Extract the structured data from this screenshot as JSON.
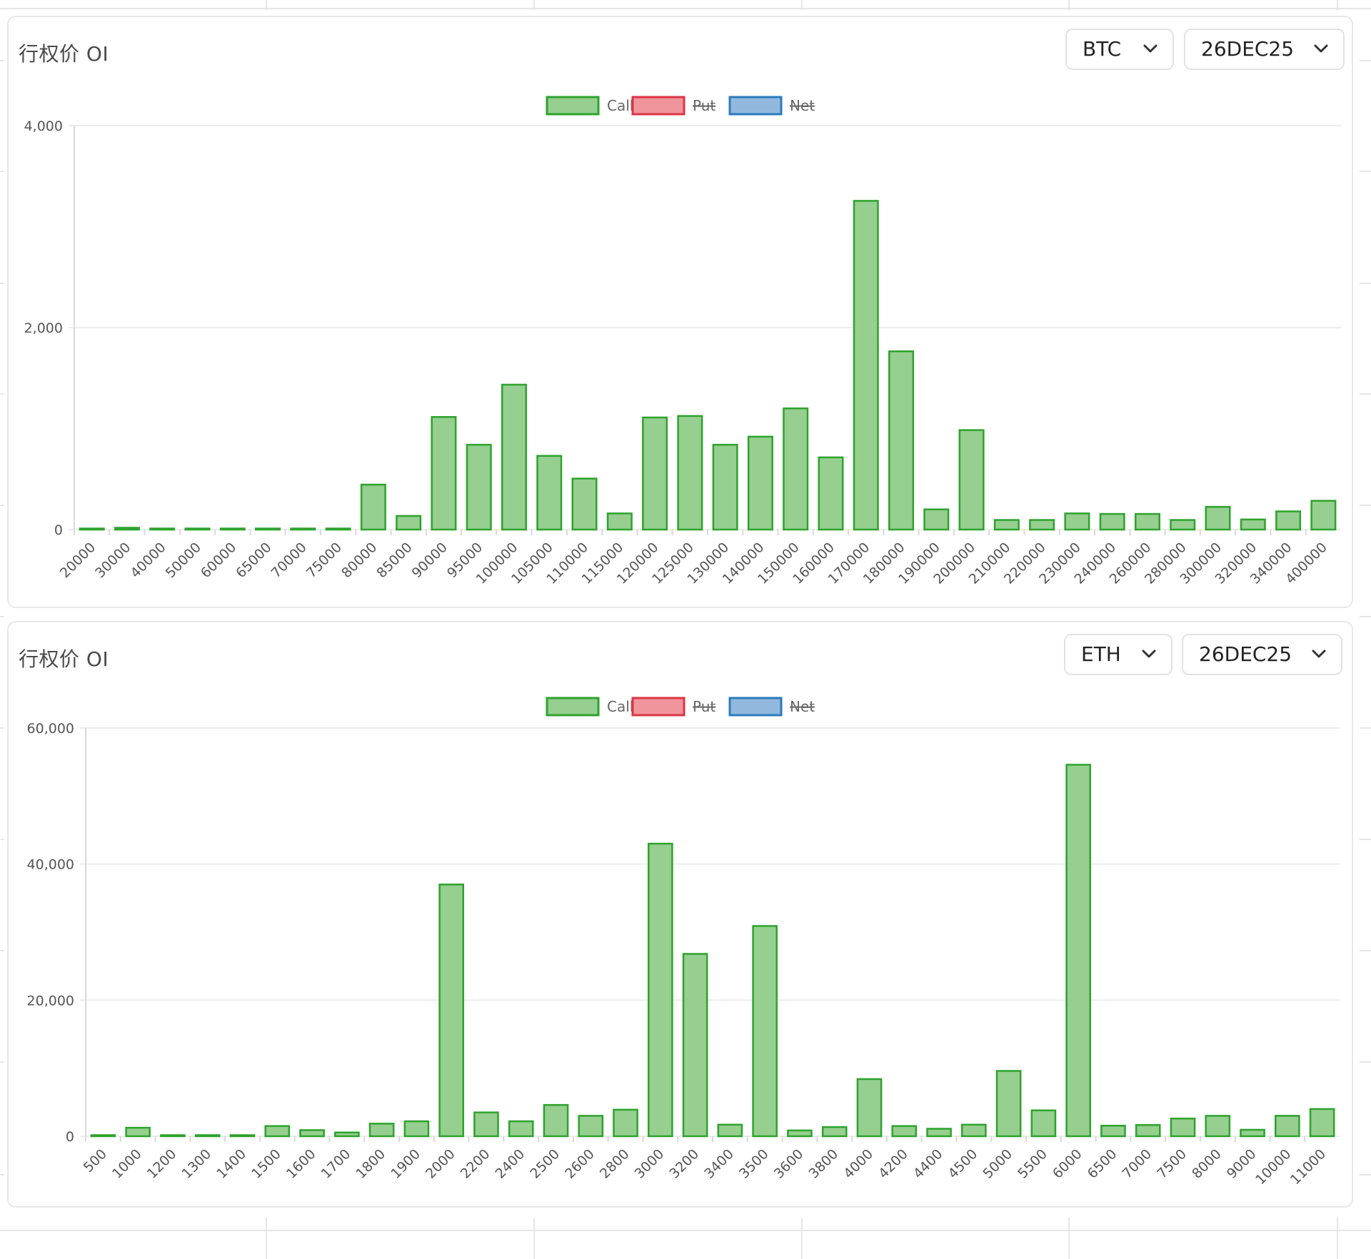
{
  "colors": {
    "call_fill": "#96cf8f",
    "call_stroke": "#2ea32e",
    "put_fill": "#f0959b",
    "put_stroke": "#dc3545",
    "net_fill": "#92b9dd",
    "net_stroke": "#2b7bbf",
    "grid": "#ececec",
    "axis": "#d9d9d9"
  },
  "panels": [
    {
      "title": "行权价 OI",
      "asset_select": {
        "value": "BTC"
      },
      "expiry_select": {
        "value": "26DEC25"
      },
      "legend": [
        {
          "label": "Call",
          "hidden": false
        },
        {
          "label": "Put",
          "hidden": true
        },
        {
          "label": "Net",
          "hidden": true
        }
      ]
    },
    {
      "title": "行权价 OI",
      "asset_select": {
        "value": "ETH"
      },
      "expiry_select": {
        "value": "26DEC25"
      },
      "legend": [
        {
          "label": "Call",
          "hidden": false
        },
        {
          "label": "Put",
          "hidden": true
        },
        {
          "label": "Net",
          "hidden": true
        }
      ]
    }
  ],
  "chart_data": [
    {
      "type": "bar",
      "title": "行权价 OI",
      "asset": "BTC",
      "expiry": "26DEC25",
      "categories": [
        "20000",
        "30000",
        "40000",
        "50000",
        "60000",
        "65000",
        "70000",
        "75000",
        "80000",
        "85000",
        "90000",
        "95000",
        "100000",
        "105000",
        "110000",
        "115000",
        "120000",
        "125000",
        "130000",
        "140000",
        "150000",
        "160000",
        "170000",
        "180000",
        "190000",
        "200000",
        "210000",
        "220000",
        "230000",
        "240000",
        "260000",
        "280000",
        "300000",
        "320000",
        "340000",
        "400000"
      ],
      "series": [
        {
          "name": "Call",
          "visible": true,
          "values": [
            8,
            18,
            4,
            4,
            2,
            4,
            8,
            8,
            445,
            135,
            1115,
            840,
            1435,
            730,
            505,
            160,
            1110,
            1125,
            840,
            920,
            1200,
            715,
            3255,
            1765,
            200,
            985,
            95,
            95,
            160,
            155,
            155,
            95,
            225,
            100,
            180,
            285
          ]
        }
      ],
      "hidden_series": [
        "Put",
        "Net"
      ],
      "ylim": [
        0,
        4000
      ],
      "yticks": [
        0,
        2000,
        4000
      ],
      "ytick_labels": [
        "0",
        "2,000",
        "4,000"
      ],
      "xlabel": "",
      "ylabel": "",
      "grid": true,
      "legend_position": "top-center"
    },
    {
      "type": "bar",
      "title": "行权价 OI",
      "asset": "ETH",
      "expiry": "26DEC25",
      "categories": [
        "500",
        "1000",
        "1200",
        "1300",
        "1400",
        "1500",
        "1600",
        "1700",
        "1800",
        "1900",
        "2000",
        "2200",
        "2400",
        "2500",
        "2600",
        "2800",
        "3000",
        "3200",
        "3400",
        "3500",
        "3600",
        "3800",
        "4000",
        "4200",
        "4400",
        "4500",
        "5000",
        "5500",
        "6000",
        "6500",
        "7000",
        "7500",
        "8000",
        "9000",
        "10000",
        "11000"
      ],
      "series": [
        {
          "name": "Call",
          "visible": true,
          "values": [
            150,
            1250,
            20,
            60,
            20,
            1500,
            900,
            550,
            1850,
            2200,
            37000,
            3500,
            2200,
            4600,
            3000,
            3900,
            43000,
            26800,
            1700,
            30900,
            850,
            1350,
            8400,
            1500,
            1100,
            1700,
            9600,
            3800,
            54600,
            1550,
            1650,
            2600,
            3000,
            950,
            3000,
            4000
          ]
        }
      ],
      "hidden_series": [
        "Put",
        "Net"
      ],
      "ylim": [
        0,
        60000
      ],
      "yticks": [
        0,
        20000,
        40000,
        60000
      ],
      "ytick_labels": [
        "0",
        "20,000",
        "40,000",
        "60,000"
      ],
      "xlabel": "",
      "ylabel": "",
      "grid": true,
      "legend_position": "top-center"
    }
  ]
}
